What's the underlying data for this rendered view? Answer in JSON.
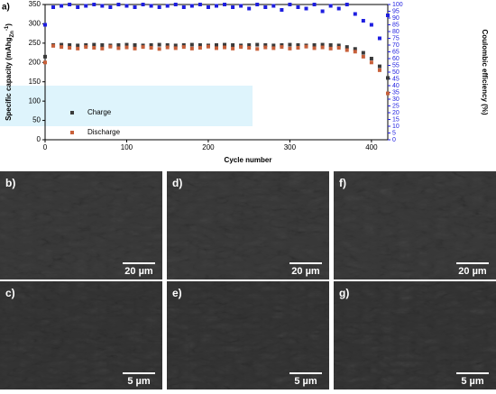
{
  "chart_data": {
    "type": "scatter",
    "panel_label": "a)",
    "x_label": "Cycle number",
    "y_label": "Specific capacity (mAhg",
    "y_label_sub": "Zn",
    "y_label_sup": "-1",
    "y_label_end": ")",
    "y2_label": "Coulombic efficiency (%)",
    "xlim": [
      0,
      420
    ],
    "xticks": [
      0,
      100,
      200,
      300,
      400
    ],
    "ylim": [
      0,
      350
    ],
    "yticks": [
      0,
      50,
      100,
      150,
      200,
      250,
      300,
      350
    ],
    "y2lim": [
      0,
      100
    ],
    "y2ticks": [
      0,
      5,
      10,
      15,
      20,
      25,
      30,
      35,
      40,
      45,
      50,
      55,
      60,
      65,
      70,
      75,
      80,
      85,
      90,
      95,
      100
    ],
    "legend": "lower left",
    "x": [
      0,
      10,
      20,
      30,
      40,
      50,
      60,
      70,
      80,
      90,
      100,
      110,
      120,
      130,
      140,
      150,
      160,
      170,
      180,
      190,
      200,
      210,
      220,
      230,
      240,
      250,
      260,
      270,
      280,
      290,
      300,
      310,
      320,
      330,
      340,
      350,
      360,
      370,
      380,
      390,
      400,
      410,
      420
    ],
    "series": [
      {
        "name": "Charge",
        "color": "#3a3a3a",
        "values": [
          215,
          245,
          246,
          245,
          244,
          245,
          246,
          245,
          244,
          245,
          246,
          245,
          244,
          245,
          246,
          245,
          244,
          245,
          246,
          245,
          244,
          245,
          246,
          245,
          244,
          245,
          246,
          245,
          244,
          245,
          246,
          245,
          244,
          245,
          246,
          245,
          244,
          240,
          235,
          225,
          210,
          190,
          160
        ]
      },
      {
        "name": "Discharge",
        "color": "#c8603a",
        "values": [
          200,
          243,
          240,
          238,
          236,
          240,
          238,
          236,
          241,
          237,
          239,
          236,
          240,
          238,
          235,
          239,
          237,
          240,
          236,
          238,
          241,
          237,
          239,
          236,
          240,
          238,
          235,
          239,
          237,
          240,
          236,
          238,
          241,
          237,
          239,
          236,
          238,
          232,
          228,
          215,
          200,
          180,
          120
        ]
      },
      {
        "name": "Coulombic efficiency",
        "color": "#1e1ee0",
        "axis": "y2",
        "values": [
          85,
          98,
          99,
          100,
          98,
          99,
          100,
          99,
          98,
          100,
          99,
          98,
          100,
          99,
          98,
          99,
          100,
          98,
          99,
          100,
          98,
          99,
          100,
          98,
          99,
          97,
          100,
          98,
          99,
          96,
          100,
          98,
          97,
          100,
          95,
          99,
          97,
          100,
          93,
          88,
          85,
          75,
          92
        ]
      }
    ]
  },
  "images": [
    {
      "label": "b)",
      "scale": "20 µm"
    },
    {
      "label": "d)",
      "scale": "20 µm"
    },
    {
      "label": "f)",
      "scale": "20 µm"
    },
    {
      "label": "c)",
      "scale": "5 µm"
    },
    {
      "label": "e)",
      "scale": "5 µm"
    },
    {
      "label": "g)",
      "scale": "5 µm"
    }
  ]
}
